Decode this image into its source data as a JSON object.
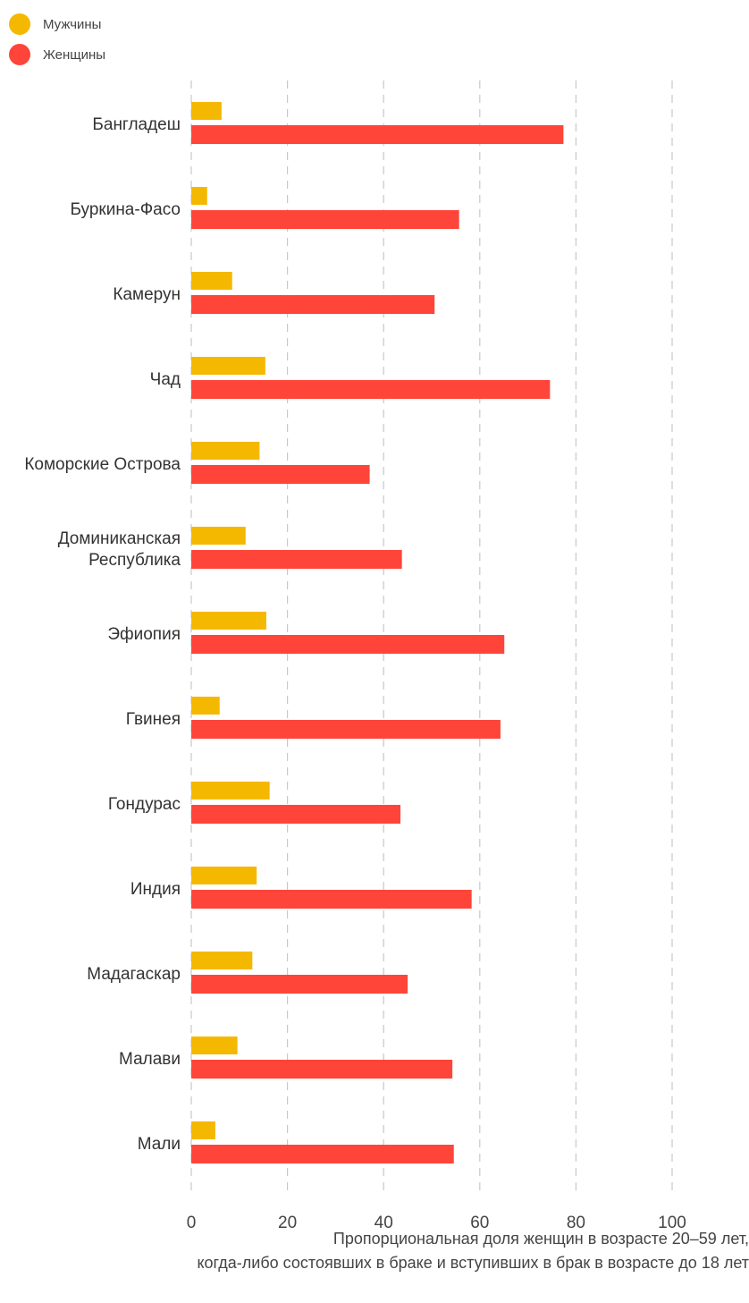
{
  "chart_data": {
    "type": "bar",
    "orientation": "horizontal",
    "categories": [
      [
        "Бангладеш"
      ],
      [
        "Буркина-Фасо"
      ],
      [
        "Камерун"
      ],
      [
        "Чад"
      ],
      [
        "Коморские Острова"
      ],
      [
        "Доминиканская",
        "Республика"
      ],
      [
        "Эфиопия"
      ],
      [
        "Гвинея"
      ],
      [
        "Гондурас"
      ],
      [
        "Индия"
      ],
      [
        "Мадагаскар"
      ],
      [
        "Малави"
      ],
      [
        "Мали"
      ]
    ],
    "series": [
      {
        "name": "Мужчины",
        "color": "#F5B800",
        "values": [
          6.3,
          3.3,
          8.5,
          15.4,
          14.2,
          11.3,
          15.6,
          5.9,
          16.3,
          13.6,
          12.7,
          9.6,
          5.0
        ]
      },
      {
        "name": "Женщины",
        "color": "#FF453A",
        "values": [
          77.4,
          55.7,
          50.6,
          74.6,
          37.1,
          43.8,
          65.1,
          64.3,
          43.5,
          58.3,
          45.0,
          54.3,
          54.6
        ]
      }
    ],
    "xticks": [
      "0",
      "20",
      "40",
      "60",
      "80",
      "100"
    ],
    "xlim": [
      0,
      100
    ],
    "xlabel": [
      "Пропорциональная доля женщин в возрасте 20–59 лет,",
      "когда-либо состоявших в браке и вступивших в брак в возрасте до 18 лет"
    ],
    "grid": "vertical dashed",
    "legend_position": "top-left"
  }
}
